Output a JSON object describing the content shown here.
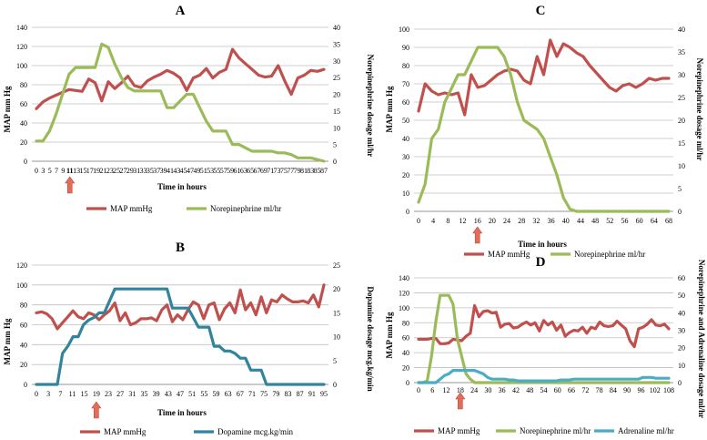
{
  "chart_data": [
    {
      "id": "A",
      "type": "line",
      "title": "A",
      "xlabel": "Time in hours",
      "ylabel": "MAP mm Hg",
      "ylabel_right": "Norepinephrine dosage ml/hr",
      "x_ticks": [
        "0",
        "3",
        "5",
        "7",
        "9",
        "11",
        "13",
        "15",
        "17",
        "19",
        "21",
        "23",
        "25",
        "27",
        "29",
        "31",
        "33",
        "35",
        "37",
        "39",
        "41",
        "43",
        "45",
        "47",
        "49",
        "51",
        "53",
        "55",
        "57",
        "59",
        "61",
        "63",
        "65",
        "67",
        "69",
        "71",
        "73",
        "75",
        "77",
        "79",
        "81",
        "83",
        "85",
        "87"
      ],
      "highlight_tick": "11",
      "arrow_at": "11",
      "ylim": [
        0,
        140
      ],
      "yticks": [
        0,
        20,
        40,
        60,
        80,
        100,
        120,
        140
      ],
      "ylim_right": [
        0,
        40
      ],
      "yticks_right": [
        0,
        5,
        10,
        15,
        20,
        25,
        30,
        35,
        40
      ],
      "series": [
        {
          "name": "MAP mmHg",
          "axis": "left",
          "color": "#c0504d",
          "values": [
            55,
            62,
            66,
            69,
            72,
            75,
            74,
            73,
            86,
            82,
            63,
            83,
            76,
            82,
            89,
            79,
            77,
            84,
            88,
            91,
            95,
            92,
            87,
            74,
            87,
            90,
            97,
            87,
            93,
            96,
            117,
            108,
            102,
            96,
            90,
            88,
            89,
            100,
            84,
            70,
            87,
            90,
            95,
            94,
            96
          ]
        },
        {
          "name": "Norepinephrine ml/hr",
          "axis": "right",
          "color": "#9bbb59",
          "values": [
            6,
            6,
            9,
            14,
            20,
            26,
            28,
            28,
            28,
            28,
            35,
            34,
            29,
            25,
            22,
            21,
            21,
            21,
            21,
            21,
            16,
            16,
            18,
            20,
            20,
            16,
            12,
            9,
            9,
            9,
            5,
            5,
            4,
            3,
            3,
            3,
            3,
            2.5,
            2.5,
            2,
            1,
            1,
            1,
            0.5,
            0
          ]
        }
      ],
      "legend": [
        "MAP mmHg",
        "Norepinephrine ml/hr"
      ]
    },
    {
      "id": "B",
      "type": "line",
      "title": "B",
      "xlabel": "Time in hours",
      "ylabel": "MAP mm Hg",
      "ylabel_right": "Dopamine dosage mcg.kg/min",
      "x_ticks": [
        "0",
        "3",
        "7",
        "11",
        "15",
        "19",
        "23",
        "27",
        "31",
        "35",
        "39",
        "43",
        "47",
        "51",
        "55",
        "59",
        "63",
        "67",
        "71",
        "75",
        "79",
        "83",
        "87",
        "91",
        "95"
      ],
      "arrow_at": "19",
      "ylim": [
        0,
        120
      ],
      "yticks": [
        0,
        20,
        40,
        60,
        80,
        100,
        120
      ],
      "ylim_right": [
        0,
        25
      ],
      "yticks_right": [
        0,
        5,
        10,
        15,
        20,
        25
      ],
      "series": [
        {
          "name": "MAP mmHg",
          "axis": "left",
          "color": "#c0504d",
          "values": [
            72,
            73,
            71,
            66,
            56,
            62,
            68,
            74,
            68,
            66,
            72,
            70,
            65,
            70,
            74,
            82,
            64,
            72,
            60,
            62,
            66,
            66,
            67,
            64,
            75,
            80,
            63,
            70,
            65,
            75,
            83,
            80,
            66,
            80,
            82,
            65,
            76,
            82,
            72,
            95,
            75,
            82,
            70,
            88,
            72,
            85,
            83,
            90,
            86,
            83,
            83,
            84,
            82,
            90,
            78,
            100
          ]
        },
        {
          "name": "Dopamine mcg.kg/min",
          "axis": "right",
          "color": "#31849b",
          "values": [
            0,
            0,
            0,
            0,
            0,
            6.5,
            8,
            10,
            10,
            12.5,
            13.5,
            14,
            15,
            15,
            17.5,
            20,
            20,
            20,
            20,
            20,
            20,
            20,
            20,
            20,
            20,
            20,
            16,
            16,
            16,
            16,
            14,
            12,
            12,
            12,
            8,
            8,
            7,
            7,
            6.5,
            5.5,
            5.5,
            3,
            3,
            3,
            0,
            0,
            0,
            0,
            0,
            0,
            0,
            0,
            0,
            0,
            0,
            0
          ]
        }
      ],
      "legend": [
        "MAP mmHg",
        "Dopamine mcg.kg/min"
      ]
    },
    {
      "id": "C",
      "type": "line",
      "title": "C",
      "xlabel": "Time in hours",
      "ylabel": "MAP mm Hg",
      "ylabel_right": "Norepinephrine dosage ml/hr",
      "x_ticks": [
        "0",
        "4",
        "8",
        "12",
        "16",
        "20",
        "24",
        "28",
        "32",
        "36",
        "40",
        "44",
        "48",
        "52",
        "56",
        "60",
        "64",
        "68"
      ],
      "arrow_at": "16",
      "ylim": [
        0,
        100
      ],
      "yticks": [
        0,
        10,
        20,
        30,
        40,
        50,
        60,
        70,
        80,
        90,
        100
      ],
      "ylim_right": [
        0,
        40
      ],
      "yticks_right": [
        0,
        5,
        10,
        15,
        20,
        25,
        30,
        35,
        40
      ],
      "series": [
        {
          "name": "MAP mmHg",
          "axis": "left",
          "color": "#c0504d",
          "values": [
            55,
            70,
            66,
            64,
            65,
            64,
            65,
            53,
            75,
            68,
            69,
            72,
            75,
            77,
            78,
            77,
            72,
            70,
            85,
            75,
            94,
            85,
            92,
            90,
            87,
            85,
            80,
            76,
            72,
            68,
            66,
            69,
            70,
            68,
            70,
            73,
            72,
            73,
            73
          ]
        },
        {
          "name": "Norepinephrine ml/hr",
          "axis": "right",
          "color": "#9bbb59",
          "values": [
            2,
            6,
            16,
            18,
            24,
            27,
            30,
            30,
            33,
            36,
            36,
            36,
            36,
            34,
            30,
            24,
            20,
            19,
            18,
            16,
            12,
            8,
            3,
            0.5,
            0,
            0,
            0,
            0,
            0,
            0,
            0,
            0,
            0,
            0,
            0,
            0,
            0,
            0,
            0
          ]
        }
      ],
      "legend": [
        "MAP mmHg",
        "Norepinephrine ml/hr"
      ]
    },
    {
      "id": "D",
      "type": "line",
      "title": "D",
      "xlabel": "",
      "ylabel": "MAP mm Hg",
      "ylabel_right": "Norepinephrine and Adrenaline dosage ml/hr",
      "x_ticks": [
        "0",
        "6",
        "12",
        "18",
        "24",
        "30",
        "36",
        "42",
        "48",
        "54",
        "60",
        "66",
        "72",
        "78",
        "84",
        "90",
        "96",
        "102",
        "108"
      ],
      "arrow_at": "18",
      "ylim": [
        0,
        140
      ],
      "yticks": [
        0,
        20,
        40,
        60,
        80,
        100,
        120,
        140
      ],
      "ylim_right": [
        0,
        60
      ],
      "yticks_right": [
        0,
        10,
        20,
        30,
        40,
        50,
        60
      ],
      "series": [
        {
          "name": "MAP mmHg",
          "axis": "left",
          "color": "#c0504d",
          "values": [
            58,
            58,
            58,
            59,
            59,
            52,
            52,
            53,
            58,
            57,
            56,
            62,
            66,
            103,
            88,
            95,
            96,
            93,
            94,
            74,
            78,
            79,
            73,
            74,
            78,
            81,
            77,
            80,
            69,
            83,
            77,
            81,
            70,
            77,
            62,
            67,
            70,
            69,
            74,
            66,
            74,
            72,
            81,
            76,
            75,
            76,
            82,
            77,
            72,
            56,
            48,
            72,
            74,
            78,
            84,
            77,
            76,
            78,
            72
          ]
        },
        {
          "name": "Norepinephrine ml/hr",
          "axis": "right",
          "color": "#9bbb59",
          "values": [
            0,
            0,
            1,
            15,
            35,
            50,
            50,
            50,
            45,
            25,
            15,
            5,
            2,
            0,
            0,
            0,
            0,
            0,
            0,
            0,
            0,
            0,
            0,
            0,
            0,
            0,
            0,
            0,
            0,
            0,
            0,
            0,
            0,
            0,
            0,
            0,
            0,
            0,
            0,
            0,
            0,
            0,
            0,
            0,
            0,
            0,
            0,
            0,
            0,
            0,
            0,
            0,
            0,
            0,
            0,
            0,
            0,
            0,
            0
          ]
        },
        {
          "name": "Adrenaline ml/hr",
          "axis": "right",
          "color": "#4bacc6",
          "values": [
            0,
            0,
            0,
            0,
            0,
            2,
            4,
            5,
            7,
            7,
            7,
            7,
            7,
            7,
            6,
            5,
            3,
            2,
            2,
            2,
            2,
            1.5,
            1.5,
            1,
            1,
            1,
            1,
            1,
            1,
            1,
            1,
            1,
            1,
            1.5,
            1.5,
            1.5,
            2,
            2,
            2,
            2,
            2,
            2,
            2,
            2,
            2,
            2,
            2,
            2,
            2,
            2,
            2,
            2,
            3,
            3,
            3,
            2.5,
            2.5,
            2.5,
            2.5
          ]
        }
      ],
      "legend": [
        "MAP mmHg",
        "Norepinephrine ml/hr",
        "Adrenaline ml/hr"
      ]
    }
  ]
}
